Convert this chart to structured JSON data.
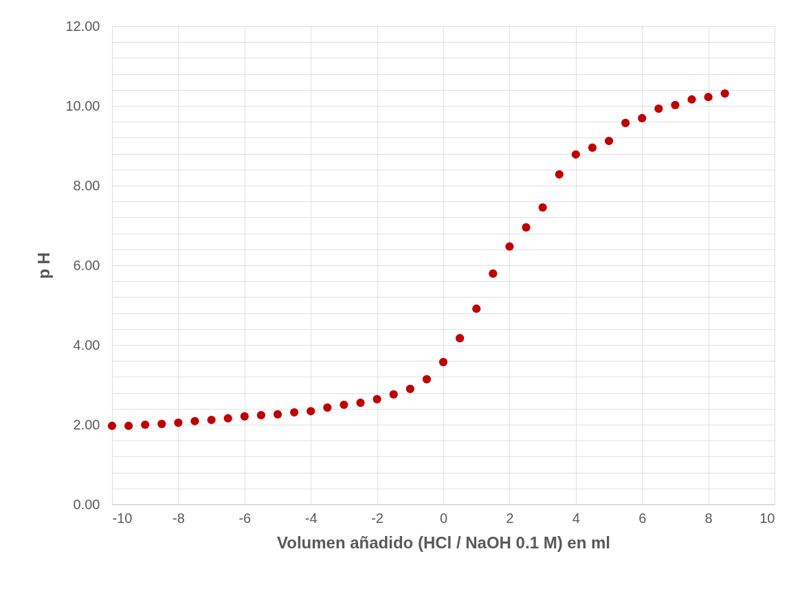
{
  "chart_data": {
    "type": "scatter",
    "xlabel": "Volumen añadido (HCl / NaOH 0.1 M) en ml",
    "ylabel": "p H",
    "x": [
      -10,
      -9.5,
      -9,
      -8.5,
      -8,
      -7.5,
      -7,
      -6.5,
      -6,
      -5.5,
      -5,
      -4.5,
      -4,
      -3.5,
      -3,
      -2.5,
      -2,
      -1.5,
      -1,
      -0.5,
      0,
      0.5,
      1,
      1.5,
      2,
      2.5,
      3,
      3.5,
      4,
      4.5,
      5,
      5.5,
      6,
      6.5,
      7,
      7.5,
      8,
      8.5
    ],
    "series": [
      {
        "color": "#c00000",
        "values": [
          1.97,
          1.97,
          2.0,
          2.02,
          2.05,
          2.09,
          2.12,
          2.16,
          2.21,
          2.24,
          2.26,
          2.31,
          2.34,
          2.43,
          2.5,
          2.55,
          2.64,
          2.76,
          2.9,
          3.14,
          3.57,
          4.17,
          4.91,
          5.79,
          6.47,
          6.95,
          7.45,
          8.28,
          8.78,
          8.95,
          9.12,
          9.57,
          9.69,
          9.93,
          10.02,
          10.16,
          10.22,
          10.31
        ]
      }
    ],
    "xlim": [
      -10,
      10
    ],
    "xticks": [
      -10,
      -8,
      -6,
      -4,
      -2,
      0,
      2,
      4,
      6,
      8,
      10
    ],
    "ylim": [
      0,
      12
    ],
    "yticks": [
      {
        "value": 0,
        "label": "0.00"
      },
      {
        "value": 0.4,
        "label": null
      },
      {
        "value": 0.8,
        "label": null
      },
      {
        "value": 1.2,
        "label": null
      },
      {
        "value": 1.6,
        "label": null
      },
      {
        "value": 2,
        "label": "2.00"
      },
      {
        "value": 2.4,
        "label": null
      },
      {
        "value": 2.8,
        "label": null
      },
      {
        "value": 3.2,
        "label": null
      },
      {
        "value": 3.6,
        "label": null
      },
      {
        "value": 4,
        "label": "4.00"
      },
      {
        "value": 4.4,
        "label": null
      },
      {
        "value": 4.8,
        "label": null
      },
      {
        "value": 5.2,
        "label": null
      },
      {
        "value": 5.6,
        "label": null
      },
      {
        "value": 6,
        "label": "6.00"
      },
      {
        "value": 6.4,
        "label": null
      },
      {
        "value": 6.8,
        "label": null
      },
      {
        "value": 7.2,
        "label": null
      },
      {
        "value": 7.6,
        "label": null
      },
      {
        "value": 8,
        "label": "8.00"
      },
      {
        "value": 8.4,
        "label": null
      },
      {
        "value": 8.8,
        "label": null
      },
      {
        "value": 9.2,
        "label": null
      },
      {
        "value": 9.6,
        "label": null
      },
      {
        "value": 10,
        "label": "10.00"
      },
      {
        "value": 10.4,
        "label": null
      },
      {
        "value": 10.8,
        "label": null
      },
      {
        "value": 11.2,
        "label": null
      },
      {
        "value": 11.6,
        "label": null
      },
      {
        "value": 12,
        "label": "12.00"
      }
    ],
    "grid": true,
    "marker": "circle"
  }
}
